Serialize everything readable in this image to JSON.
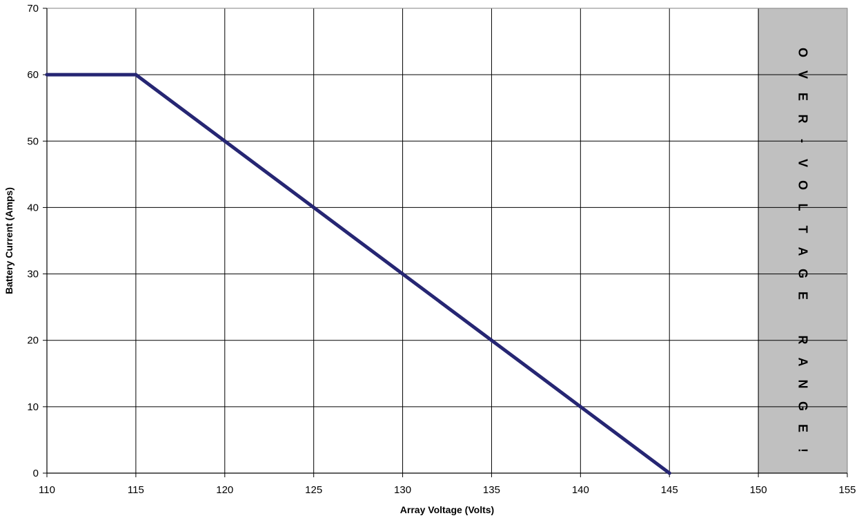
{
  "chart_data": {
    "type": "line",
    "xlabel": "Array Voltage (Volts)",
    "ylabel": "Battery Current (Amps)",
    "xlim": [
      110,
      155
    ],
    "ylim": [
      0,
      70
    ],
    "x_ticks": [
      "110",
      "115",
      "120",
      "125",
      "130",
      "135",
      "140",
      "145",
      "150",
      "155"
    ],
    "y_ticks": [
      "0",
      "10",
      "20",
      "30",
      "40",
      "50",
      "60",
      "70"
    ],
    "grid": true,
    "series": [
      {
        "x": [
          110,
          115,
          120,
          125,
          130,
          135,
          140,
          145
        ],
        "y": [
          60,
          60,
          50,
          40,
          30,
          20,
          10,
          0
        ],
        "color": "#262673"
      }
    ],
    "annotations": [
      {
        "type": "shaded-band",
        "x_range": [
          150,
          155
        ],
        "text_lines": [
          "OVER-VOLTAGE",
          "RANGE!"
        ],
        "color": "#c0c0c0"
      }
    ]
  }
}
